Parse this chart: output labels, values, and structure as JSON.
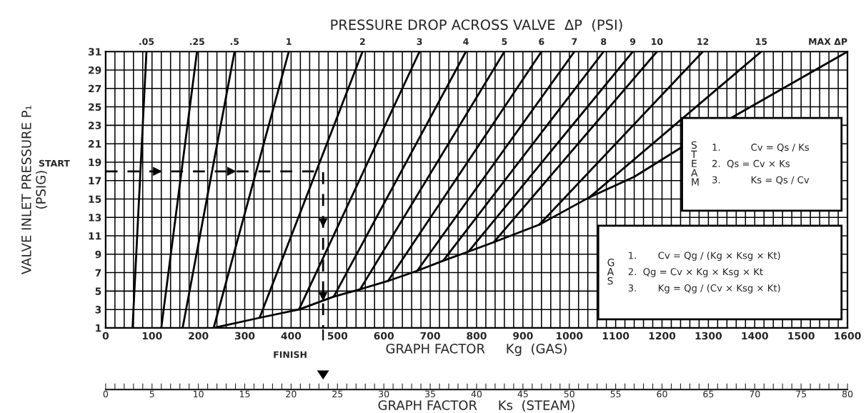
{
  "chart_data": {
    "type": "line",
    "title": "PRESSURE DROP ACROSS VALVE  ΔP  (PSI)",
    "xlabel": "GRAPH FACTOR     Kg  (GAS)",
    "ylabel": "VALVE INLET PRESSURE P₁\n(PSIG)",
    "x2label": "GRAPH FACTOR     Ks  (STEAM)",
    "xlim": [
      0,
      1600
    ],
    "ylim": [
      1,
      31
    ],
    "xticks": [
      0,
      {
        "value": 20,
        "label": null
      },
      {
        "value": 40,
        "label": null
      },
      {
        "value": 60,
        "label": null
      },
      {
        "value": 80,
        "label": null
      },
      100,
      {
        "value": 120,
        "label": null
      },
      {
        "value": 140,
        "label": null
      },
      {
        "value": 160,
        "label": null
      },
      {
        "value": 180,
        "label": null
      },
      200,
      {
        "value": 220,
        "label": null
      },
      {
        "value": 240,
        "label": null
      },
      {
        "value": 260,
        "label": null
      },
      {
        "value": 280,
        "label": null
      },
      300,
      {
        "value": 320,
        "label": null
      },
      {
        "value": 340,
        "label": null
      },
      {
        "value": 360,
        "label": null
      },
      {
        "value": 380,
        "label": null
      },
      400,
      {
        "value": 420,
        "label": null
      },
      {
        "value": 440,
        "label": null
      },
      {
        "value": 460,
        "label": null
      },
      {
        "value": 480,
        "label": null
      },
      500,
      {
        "value": 520,
        "label": null
      },
      {
        "value": 540,
        "label": null
      },
      {
        "value": 560,
        "label": null
      },
      {
        "value": 580,
        "label": null
      },
      600,
      {
        "value": 620,
        "label": null
      },
      {
        "value": 640,
        "label": null
      },
      {
        "value": 660,
        "label": null
      },
      {
        "value": 680,
        "label": null
      },
      700,
      {
        "value": 720,
        "label": null
      },
      {
        "value": 740,
        "label": null
      },
      {
        "value": 760,
        "label": null
      },
      {
        "value": 780,
        "label": null
      },
      800,
      {
        "value": 820,
        "label": null
      },
      {
        "value": 840,
        "label": null
      },
      {
        "value": 860,
        "label": null
      },
      {
        "value": 880,
        "label": null
      },
      900,
      {
        "value": 920,
        "label": null
      },
      {
        "value": 940,
        "label": null
      },
      {
        "value": 960,
        "label": null
      },
      {
        "value": 980,
        "label": null
      },
      1000,
      {
        "value": 1020,
        "label": null
      },
      {
        "value": 1040,
        "label": null
      },
      {
        "value": 1060,
        "label": null
      },
      {
        "value": 1080,
        "label": null
      },
      1100,
      {
        "value": 1120,
        "label": null
      },
      {
        "value": 1140,
        "label": null
      },
      {
        "value": 1160,
        "label": null
      },
      {
        "value": 1180,
        "label": null
      },
      1200,
      {
        "value": 1220,
        "label": null
      },
      {
        "value": 1240,
        "label": null
      },
      {
        "value": 1260,
        "label": null
      },
      {
        "value": 1280,
        "label": null
      },
      1300,
      {
        "value": 1320,
        "label": null
      },
      {
        "value": 1340,
        "label": null
      },
      {
        "value": 1360,
        "label": null
      },
      {
        "value": 1380,
        "label": null
      },
      1400,
      {
        "value": 1420,
        "label": null
      },
      {
        "value": 1440,
        "label": null
      },
      {
        "value": 1460,
        "label": null
      },
      {
        "value": 1480,
        "label": null
      },
      1500,
      {
        "value": 1520,
        "label": null
      },
      {
        "value": 1540,
        "label": null
      },
      {
        "value": 1560,
        "label": null
      },
      {
        "value": 1580,
        "label": null
      },
      1600
    ],
    "yticks": [
      1,
      3,
      5,
      7,
      9,
      11,
      13,
      15,
      17,
      19,
      21,
      23,
      25,
      27,
      29,
      31
    ],
    "x2lim": [
      0,
      80
    ],
    "x2ticks": [
      0,
      {
        "value": 1,
        "label": null
      },
      {
        "value": 2,
        "label": null
      },
      {
        "value": 3,
        "label": null
      },
      {
        "value": 4,
        "label": null
      },
      5,
      {
        "value": 6,
        "label": null
      },
      {
        "value": 7,
        "label": null
      },
      {
        "value": 8,
        "label": null
      },
      {
        "value": 9,
        "label": null
      },
      10,
      {
        "value": 11,
        "label": null
      },
      {
        "value": 12,
        "label": null
      },
      {
        "value": 13,
        "label": null
      },
      {
        "value": 14,
        "label": null
      },
      15,
      {
        "value": 16,
        "label": null
      },
      {
        "value": 17,
        "label": null
      },
      {
        "value": 18,
        "label": null
      },
      {
        "value": 19,
        "label": null
      },
      20,
      {
        "value": 21,
        "label": null
      },
      {
        "value": 22,
        "label": null
      },
      {
        "value": 23,
        "label": null
      },
      {
        "value": 24,
        "label": null
      },
      25,
      {
        "value": 26,
        "label": null
      },
      {
        "value": 27,
        "label": null
      },
      {
        "value": 28,
        "label": null
      },
      {
        "value": 29,
        "label": null
      },
      30,
      {
        "value": 31,
        "label": null
      },
      {
        "value": 32,
        "label": null
      },
      {
        "value": 33,
        "label": null
      },
      {
        "value": 34,
        "label": null
      },
      35,
      {
        "value": 36,
        "label": null
      },
      {
        "value": 37,
        "label": null
      },
      {
        "value": 38,
        "label": null
      },
      {
        "value": 39,
        "label": null
      },
      40,
      {
        "value": 41,
        "label": null
      },
      {
        "value": 42,
        "label": null
      },
      {
        "value": 43,
        "label": null
      },
      {
        "value": 44,
        "label": null
      },
      45,
      {
        "value": 46,
        "label": null
      },
      {
        "value": 47,
        "label": null
      },
      {
        "value": 48,
        "label": null
      },
      {
        "value": 49,
        "label": null
      },
      50,
      {
        "value": 51,
        "label": null
      },
      {
        "value": 52,
        "label": null
      },
      {
        "value": 53,
        "label": null
      },
      {
        "value": 54,
        "label": null
      },
      55,
      {
        "value": 56,
        "label": null
      },
      {
        "value": 57,
        "label": null
      },
      {
        "value": 58,
        "label": null
      },
      {
        "value": 59,
        "label": null
      },
      60,
      {
        "value": 61,
        "label": null
      },
      {
        "value": 62,
        "label": null
      },
      {
        "value": 63,
        "label": null
      },
      {
        "value": 64,
        "label": null
      },
      65,
      {
        "value": 66,
        "label": null
      },
      {
        "value": 67,
        "label": null
      },
      {
        "value": 68,
        "label": null
      },
      {
        "value": 69,
        "label": null
      },
      70,
      {
        "value": 71,
        "label": null
      },
      {
        "value": 72,
        "label": null
      },
      {
        "value": 73,
        "label": null
      },
      {
        "value": 74,
        "label": null
      },
      75,
      {
        "value": 76,
        "label": null
      },
      {
        "value": 77,
        "label": null
      },
      {
        "value": 78,
        "label": null
      },
      {
        "value": 79,
        "label": null
      },
      80
    ],
    "grid": true,
    "series": [
      {
        "name": ".05",
        "color": "#000000",
        "x": [
          58,
          88
        ],
        "values": [
          1,
          31
        ]
      },
      {
        "name": ".25",
        "color": "#000000",
        "x": [
          120,
          197
        ],
        "values": [
          1,
          31
        ]
      },
      {
        "name": ".5",
        "color": "#000000",
        "x": [
          166,
          278
        ],
        "values": [
          1,
          31
        ]
      },
      {
        "name": "1",
        "color": "#000000",
        "x": [
          233,
          395
        ],
        "values": [
          1,
          31
        ]
      },
      {
        "name": "2",
        "color": "#000000",
        "x": [
          332,
          554
        ],
        "values": [
          2.1,
          31
        ]
      },
      {
        "name": "3",
        "color": "#000000",
        "x": [
          417,
          677
        ],
        "values": [
          3,
          31
        ]
      },
      {
        "name": "4",
        "color": "#000000",
        "x": [
          492,
          777
        ],
        "values": [
          4.4,
          31
        ]
      },
      {
        "name": "5",
        "color": "#000000",
        "x": [
          549,
          860
        ],
        "values": [
          5.2,
          31
        ]
      },
      {
        "name": "6",
        "color": "#000000",
        "x": [
          609,
          940
        ],
        "values": [
          6.1,
          31
        ]
      },
      {
        "name": "7",
        "color": "#000000",
        "x": [
          672,
          1011
        ],
        "values": [
          7.2,
          31
        ]
      },
      {
        "name": "8",
        "color": "#000000",
        "x": [
          728,
          1074
        ],
        "values": [
          8.3,
          31
        ]
      },
      {
        "name": "9",
        "color": "#000000",
        "x": [
          783,
          1137
        ],
        "values": [
          9.3,
          31
        ]
      },
      {
        "name": "10",
        "color": "#000000",
        "x": [
          837,
          1189
        ],
        "values": [
          10.3,
          31
        ]
      },
      {
        "name": "12",
        "color": "#000000",
        "x": [
          935,
          1288
        ],
        "values": [
          12.2,
          31
        ]
      },
      {
        "name": "15",
        "color": "#000000",
        "x": [
          1044,
          1414
        ],
        "values": [
          15.2,
          31
        ]
      },
      {
        "name": "MAX ΔP",
        "color": "#000000",
        "x": [
          233,
          332,
          417,
          492,
          549,
          609,
          672,
          728,
          783,
          837,
          935,
          1044,
          1140,
          1242,
          1356,
          1600
        ],
        "values": [
          1,
          2.1,
          3,
          4.4,
          5.2,
          6.1,
          7.2,
          8.3,
          9.3,
          10.3,
          12.2,
          15.2,
          17.4,
          20.6,
          24,
          31
        ]
      },
      {
        "type": "line",
        "line_style": "dashed",
        "color": "#000000",
        "x": [
          0,
          126,
          286,
          469,
          469,
          469,
          469
        ],
        "values": [
          18,
          18,
          18,
          18,
          11.7,
          3.7,
          1
        ]
      }
    ],
    "annotations": [
      "START",
      "FINISH",
      "STEAM\n1.          Cv = Qs / Ks\n2.  Qs = Cv × Ks\n3.          Ks = Qs / Cv",
      "GAS\n1.       Cv = Qg / (Kg × Ksg × Kt)\n2.  Qg = Cv × Kg × Ksg × Kt\n3.       Kg = Qg / (Cv × Ksg × Kt)"
    ]
  }
}
